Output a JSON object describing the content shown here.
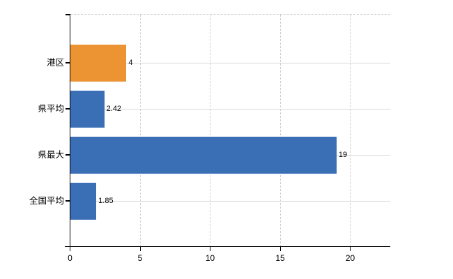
{
  "chart_data": {
    "type": "bar",
    "orientation": "horizontal",
    "title": "",
    "xlabel": "",
    "ylabel": "",
    "categories": [
      "港区",
      "県平均",
      "県最大",
      "全国平均"
    ],
    "values": [
      4,
      2.42,
      19,
      1.85
    ],
    "value_labels": [
      "4",
      "2.42",
      "19",
      "1.85"
    ],
    "bar_colors": [
      "#ec9433",
      "#3a6eb5",
      "#3a6eb5",
      "#3a6eb5"
    ],
    "x_tick_labels": [
      "0",
      "5",
      "10",
      "15",
      "20"
    ],
    "x_tick_values": [
      0,
      5,
      10,
      15,
      20
    ],
    "xlim": [
      0,
      22.8
    ],
    "grid": "on",
    "legend": "none"
  },
  "colors": {
    "bar_orange": "#ec9433",
    "bar_blue": "#3a6eb5",
    "h_gridline": "#d6dad6",
    "v_gridline": "#cfcfcf",
    "top_border": "#c9c9c9",
    "axis": "#000000",
    "text": "#000000",
    "background": "#ffffff"
  }
}
